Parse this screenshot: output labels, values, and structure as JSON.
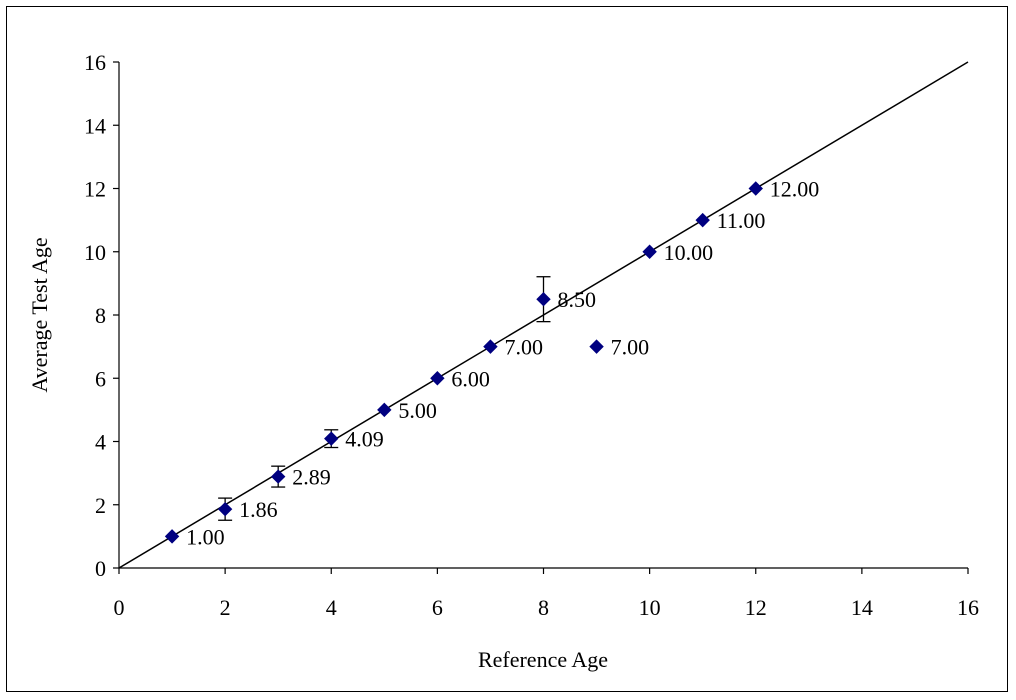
{
  "chart_data": {
    "type": "scatter",
    "title": "",
    "xlabel": "Reference Age",
    "ylabel": "Average Test Age",
    "xlim": [
      0,
      16
    ],
    "ylim": [
      0,
      16
    ],
    "xticks": [
      "0",
      "2",
      "4",
      "6",
      "8",
      "10",
      "12",
      "14",
      "16"
    ],
    "yticks": [
      "0",
      "2",
      "4",
      "6",
      "8",
      "10",
      "12",
      "14",
      "16"
    ],
    "grid": false,
    "legend": "none",
    "marker_color": "#000080",
    "line_color": "#000000",
    "reference_line": {
      "type": "y = x",
      "x": [
        0,
        16
      ],
      "y": [
        0,
        16
      ]
    },
    "series": [
      {
        "points": [
          {
            "x": 1,
            "y": 1.0,
            "label": "1.00",
            "err": 0
          },
          {
            "x": 2,
            "y": 1.86,
            "label": "1.86",
            "err": 0.35
          },
          {
            "x": 3,
            "y": 2.89,
            "label": "2.89",
            "err": 0.33
          },
          {
            "x": 4,
            "y": 4.09,
            "label": "4.09",
            "err": 0.28
          },
          {
            "x": 5,
            "y": 5.0,
            "label": "5.00",
            "err": 0
          },
          {
            "x": 6,
            "y": 6.0,
            "label": "6.00",
            "err": 0
          },
          {
            "x": 7,
            "y": 7.0,
            "label": "7.00",
            "err": 0
          },
          {
            "x": 8,
            "y": 8.5,
            "label": "8.50",
            "err": 0.71
          },
          {
            "x": 9,
            "y": 7.0,
            "label": "7.00",
            "err": 0
          },
          {
            "x": 10,
            "y": 10.0,
            "label": "10.00",
            "err": 0
          },
          {
            "x": 11,
            "y": 11.0,
            "label": "11.00",
            "err": 0
          },
          {
            "x": 12,
            "y": 12.0,
            "label": "12.00",
            "err": 0
          }
        ]
      }
    ]
  }
}
